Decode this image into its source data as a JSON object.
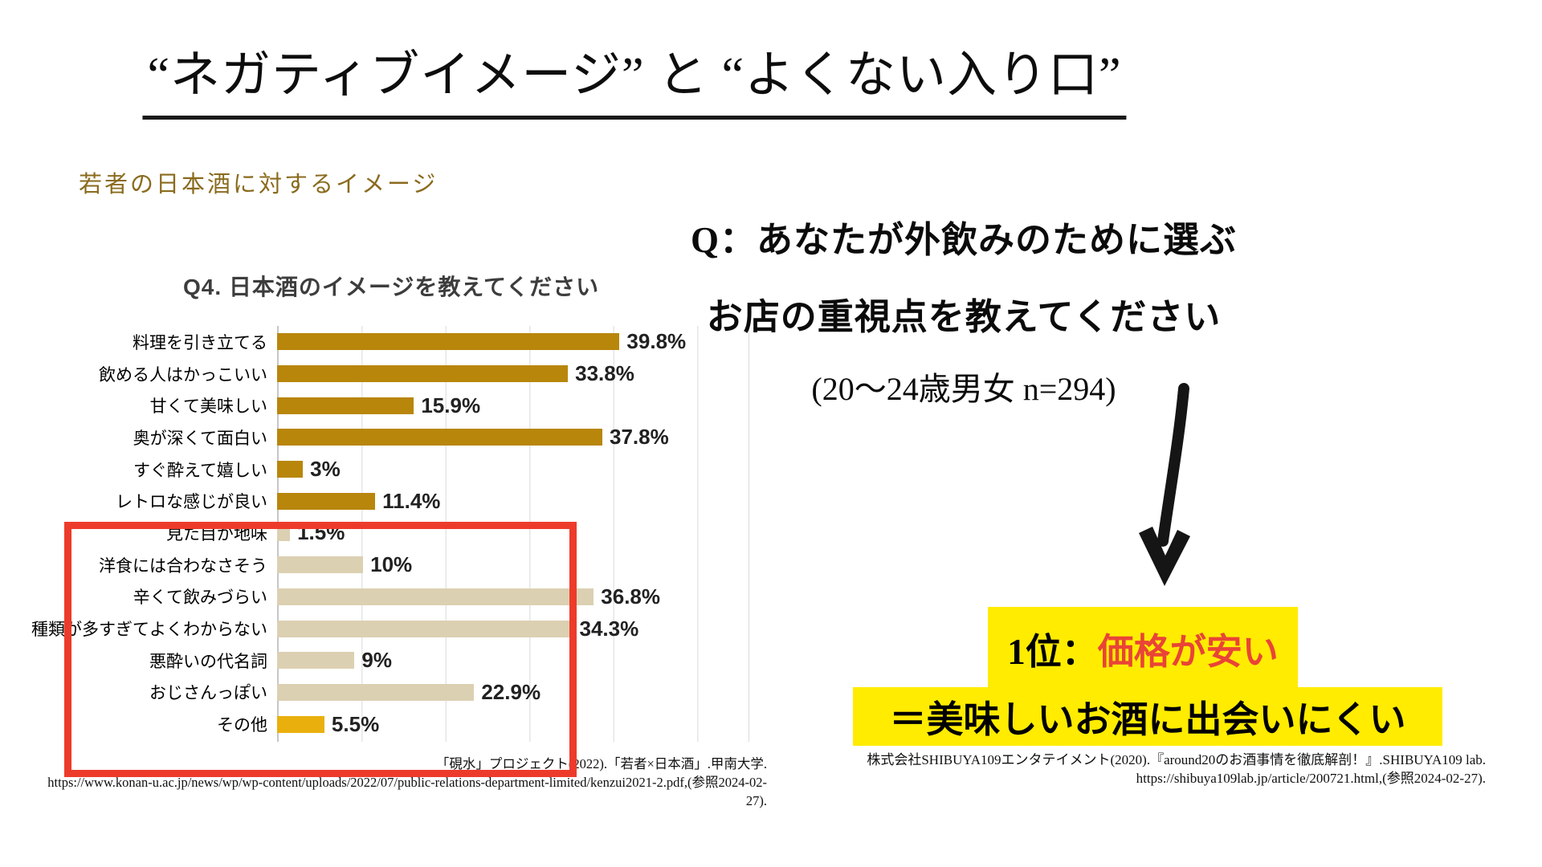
{
  "slide": {
    "title": "“ネガティブイメージ” と “よくない入り口”"
  },
  "left_panel": {
    "heading": "若者の日本酒に対するイメージ",
    "source": {
      "line1": "「硯水」プロジェクト(2022).「若者×日本酒」.甲南大学.",
      "line2": "https://www.konan-u.ac.jp/news/wp/wp-content/uploads/2022/07/public-relations-department-limited/kenzui2021-2.pdf,(参照2024-02-",
      "line3": "27)."
    }
  },
  "chart_data": {
    "type": "bar",
    "orientation": "horizontal",
    "title": "Q4. 日本酒のイメージを教えてください",
    "categories": [
      "料理を引き立てる",
      "飲める人はかっこいい",
      "甘くて美味しい",
      "奥が深くて面白い",
      "すぐ酔えて嬉しい",
      "レトロな感じが良い",
      "見た目が地味",
      "洋食には合わなさそう",
      "辛くて飲みづらい",
      "種類が多すぎてよくわからない",
      "悪酔いの代名詞",
      "おじさんっぽい",
      "その他"
    ],
    "values": [
      39.8,
      33.8,
      15.9,
      37.8,
      3,
      11.4,
      1.5,
      10,
      36.8,
      34.3,
      9,
      22.9,
      5.5
    ],
    "value_labels": [
      "39.8%",
      "33.8%",
      "15.9%",
      "37.8%",
      "3%",
      "11.4%",
      "1.5%",
      "10%",
      "36.8%",
      "34.3%",
      "9%",
      "22.9%",
      "5.5%"
    ],
    "bar_styles": [
      "gold",
      "gold",
      "gold",
      "gold",
      "gold",
      "gold",
      "beige",
      "beige",
      "beige",
      "beige",
      "beige",
      "beige",
      "amber"
    ],
    "x_max_percent": 56,
    "gridline_interval_percent": 10,
    "xlabel": "",
    "ylabel": "",
    "legend": "none",
    "red_box_range": "見た目が地味 〜 その他"
  },
  "right_panel": {
    "question_line1": "Q：あなたが外飲みのために選ぶ",
    "question_line2": "お店の重視点を教えてください",
    "question_line3": "(20～24歳男女 n=294)",
    "rank_prefix": "1位：",
    "rank_answer": "価格が安い",
    "conclusion": "＝美味しいお酒に出会いにくい",
    "source": {
      "line1": "株式会社SHIBUYA109エンタテイメント(2020).『around20のお酒事情を徹底解剖！』.SHIBUYA109 lab.",
      "line2": "https://shibuya109lab.jp/article/200721.html,(参照2024-02-27)."
    }
  },
  "colors": {
    "bar_gold": "#B8860B",
    "bar_beige": "#DCD0B2",
    "bar_amber": "#E9B00D",
    "highlight_yellow": "#FFEC00",
    "rank_red": "#E94437",
    "box_red": "#ED3B2B",
    "heading_gold": "#8A6B1E"
  }
}
